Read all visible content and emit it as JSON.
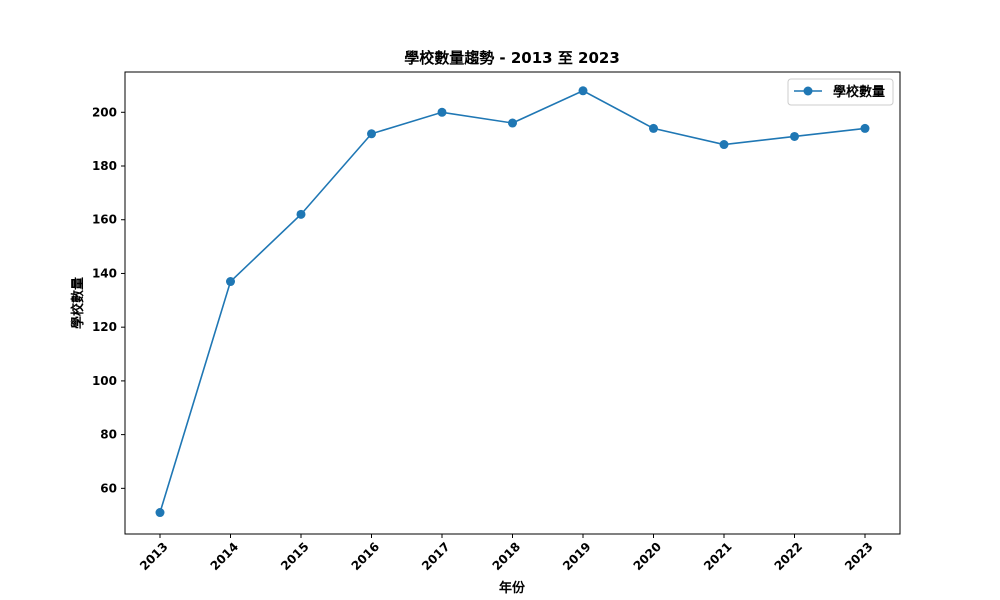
{
  "chart_data": {
    "type": "line",
    "title": "學校數量趨勢 - 2013 至 2023",
    "xlabel": "年份",
    "ylabel": "學校數量",
    "categories": [
      "2013",
      "2014",
      "2015",
      "2016",
      "2017",
      "2018",
      "2019",
      "2020",
      "2021",
      "2022",
      "2023"
    ],
    "series": [
      {
        "name": "學校數量",
        "values": [
          51,
          137,
          162,
          192,
          200,
          196,
          208,
          194,
          188,
          191,
          194
        ],
        "color": "#1f77b4"
      }
    ],
    "ylim": [
      43,
      215
    ],
    "yticks": [
      60,
      80,
      100,
      120,
      140,
      160,
      180,
      200
    ],
    "grid": false,
    "legend": "top-right",
    "marker": "circle"
  }
}
